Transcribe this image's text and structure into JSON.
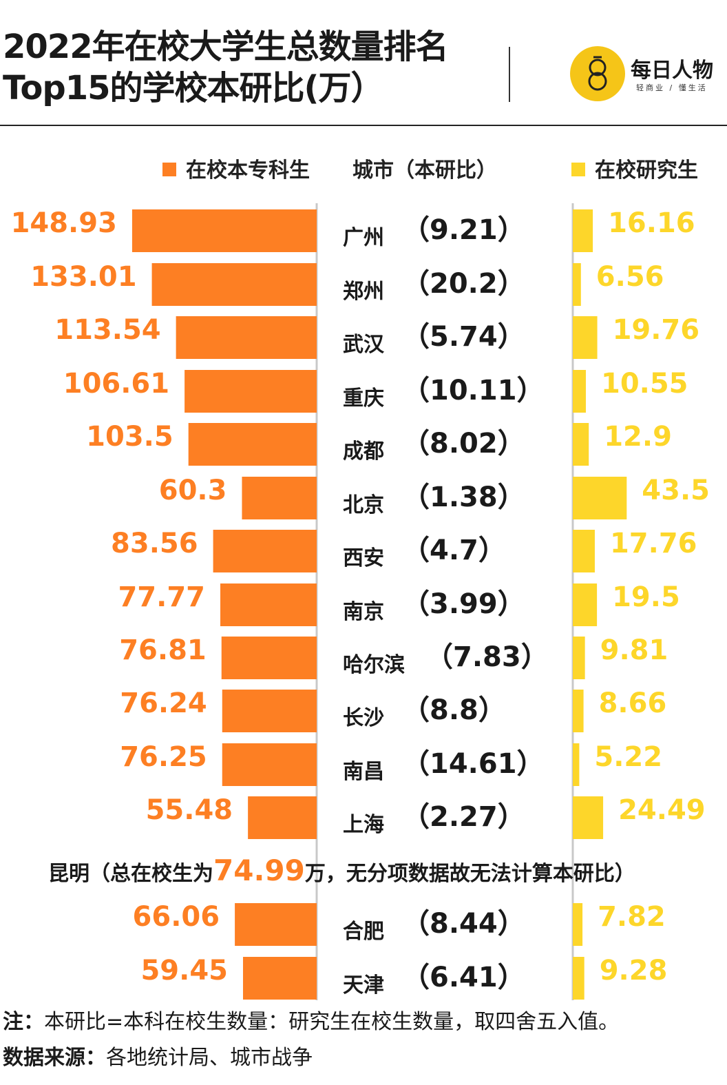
{
  "header": {
    "title_line1": "2022年在校大学生总数量排名",
    "title_line2": "Top15的学校本研比(万）"
  },
  "logo": {
    "name": "每日人物",
    "tagline": "轻商业 / 懂生活",
    "icon": "lemon-icon"
  },
  "legend": {
    "undergrad": "在校本专科生",
    "city": "城市（本研比）",
    "graduate": "在校研究生"
  },
  "colors": {
    "undergrad": "#fd7f23",
    "graduate": "#fdd62a",
    "axis": "#c8c8c8"
  },
  "chart_data": {
    "type": "bar",
    "orientation": "horizontal-butterfly",
    "categories": [
      "广州",
      "郑州",
      "武汉",
      "重庆",
      "成都",
      "北京",
      "西安",
      "南京",
      "哈尔滨",
      "长沙",
      "南昌",
      "上海",
      "合肥",
      "天津"
    ],
    "ratios": [
      "（9.21）",
      "（20.2）",
      "（5.74）",
      "（10.11）",
      "（8.02）",
      "（1.38）",
      "（4.7）",
      "（3.99）",
      "（7.83）",
      "（8.8）",
      "（14.61）",
      "（2.27）",
      "（8.44）",
      "（6.41）"
    ],
    "series": [
      {
        "name": "在校本专科生",
        "values": [
          148.93,
          133.01,
          113.54,
          106.61,
          103.5,
          60.3,
          83.56,
          77.77,
          76.81,
          76.24,
          76.25,
          55.48,
          66.06,
          59.45
        ],
        "labels": [
          "148.93",
          "133.01",
          "113.54",
          "106.61",
          "103.5",
          "60.3",
          "83.56",
          "77.77",
          "76.81",
          "76.24",
          "76.25",
          "55.48",
          "66.06",
          "59.45"
        ]
      },
      {
        "name": "在校研究生",
        "values": [
          16.16,
          6.56,
          19.76,
          10.55,
          12.9,
          43.5,
          17.76,
          19.5,
          9.81,
          8.66,
          5.22,
          24.49,
          7.82,
          9.28
        ],
        "labels": [
          "16.16",
          "6.56",
          "19.76",
          "10.55",
          "12.9",
          "43.5",
          "17.76",
          "19.5",
          "9.81",
          "8.66",
          "5.22",
          "24.49",
          "7.82",
          "9.28"
        ]
      }
    ],
    "note_row": {
      "before": "昆明（总在校生为",
      "value": "74.99",
      "after": "万，无分项数据故无法计算本研比）"
    }
  },
  "footer": {
    "note_label": "注：",
    "note_text": "本研比=本科在校生数量：研究生在校生数量，取四舍五入值。",
    "source_label": "数据来源：",
    "source_text": "各地统计局、城市战争"
  }
}
